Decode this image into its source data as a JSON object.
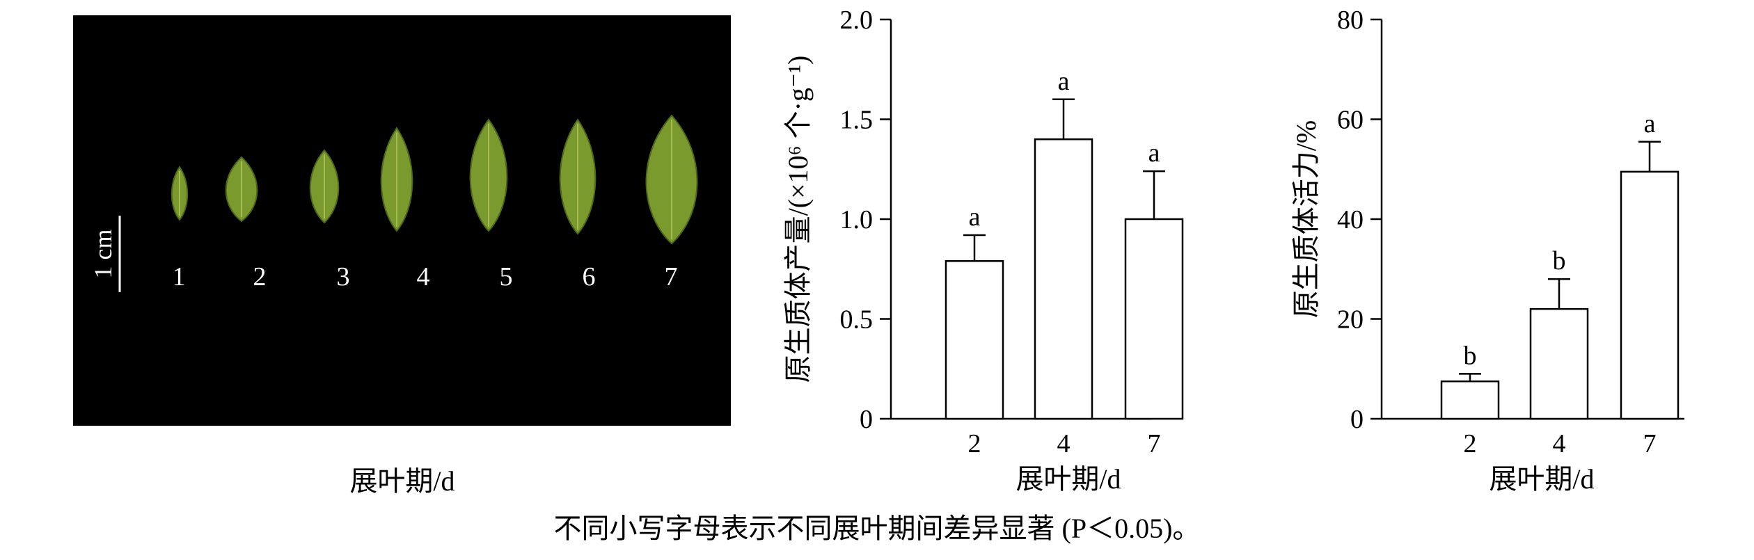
{
  "photo": {
    "scale_bar_label": "1 cm",
    "leaf_labels": [
      "1",
      "2",
      "3",
      "4",
      "5",
      "6",
      "7"
    ],
    "xlabel": "展叶期/d",
    "colors": {
      "background": "#000000",
      "leaf": "#7a9a2e",
      "leaf_dark": "#4e6a18",
      "label": "#ffffff"
    }
  },
  "chart_data": [
    {
      "type": "bar",
      "categories": [
        "2",
        "4",
        "7"
      ],
      "values": [
        0.79,
        1.4,
        1.0
      ],
      "errors": [
        0.13,
        0.2,
        0.24
      ],
      "annotations": [
        "a",
        "a",
        "a"
      ],
      "xlabel": "展叶期/d",
      "ylabel": "原生质体产量/(×10⁶ 个·g⁻¹)",
      "ylim": [
        0,
        2.0
      ],
      "yticks": [
        "0",
        "0.5",
        "1.0",
        "1.5",
        "2.0"
      ],
      "grid": false
    },
    {
      "type": "bar",
      "categories": [
        "2",
        "4",
        "7"
      ],
      "values": [
        7.5,
        22,
        49.5
      ],
      "errors": [
        1.5,
        6,
        6
      ],
      "annotations": [
        "b",
        "b",
        "a"
      ],
      "xlabel": "展叶期/d",
      "ylabel": "原生质体活力/%",
      "ylim": [
        0,
        80
      ],
      "yticks": [
        "0",
        "20",
        "40",
        "60",
        "80"
      ],
      "grid": false
    }
  ],
  "caption": "不同小写字母表示不同展叶期间差异显著 (P＜0.05)。"
}
